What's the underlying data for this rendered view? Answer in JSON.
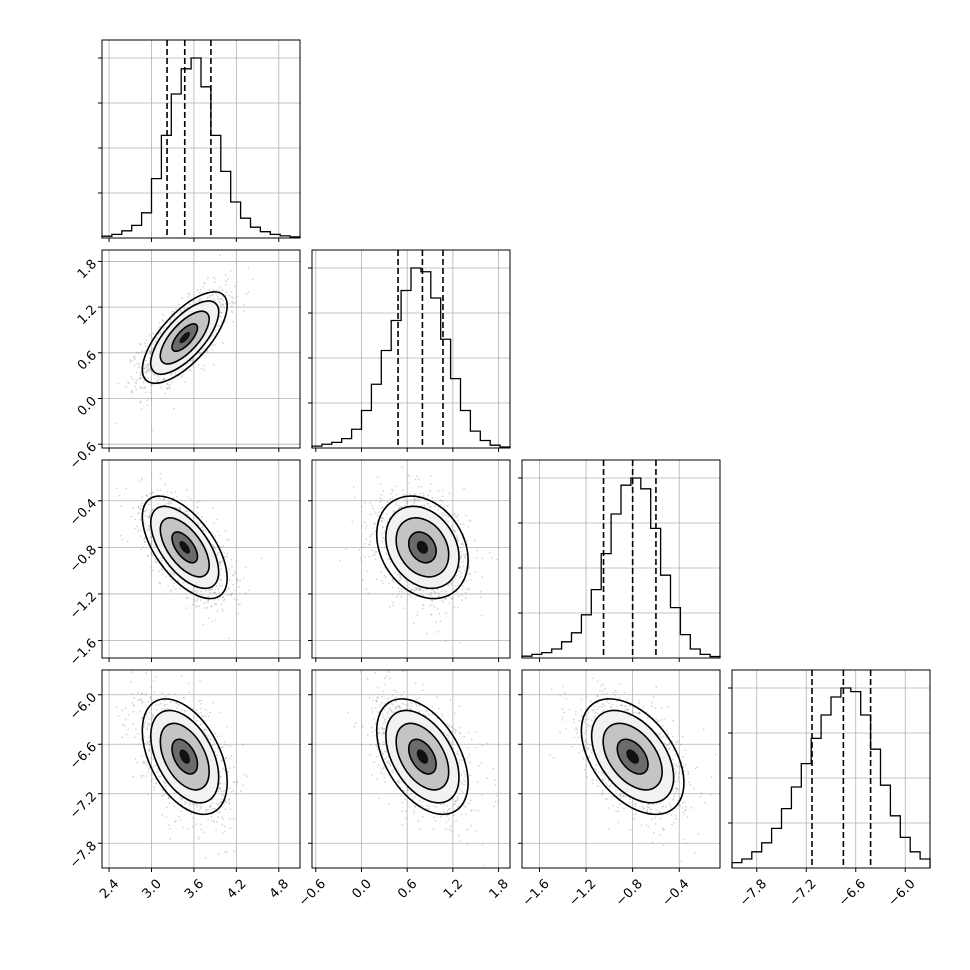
{
  "chart_data": {
    "type": "corner",
    "description_level": "posterior",
    "parameters": [
      {
        "name": "",
        "quantiles": [
          3.22,
          3.47,
          3.84
        ],
        "range": [
          2.3,
          5.1
        ],
        "ticks": [
          "2.4",
          "3.0",
          "3.6",
          "4.2",
          "4.8"
        ],
        "tick_values": [
          2.4,
          3.0,
          3.6,
          4.2,
          4.8
        ],
        "hist": [
          0.01,
          0.02,
          0.04,
          0.07,
          0.14,
          0.33,
          0.57,
          0.8,
          0.94,
          1.0,
          0.84,
          0.57,
          0.37,
          0.2,
          0.11,
          0.06,
          0.035,
          0.02,
          0.012,
          0.006
        ]
      },
      {
        "name": "",
        "quantiles": [
          0.48,
          0.8,
          1.07
        ],
        "range": [
          -0.65,
          1.95
        ],
        "ticks": [
          "-0.6",
          "0.0",
          "0.6",
          "1.2",
          "1.8"
        ],
        "tick_values": [
          -0.6,
          0.0,
          0.6,
          1.2,
          1.8
        ],
        "hist": [
          0.01,
          0.02,
          0.03,
          0.05,
          0.1,
          0.2,
          0.34,
          0.52,
          0.68,
          0.84,
          0.96,
          0.94,
          0.8,
          0.58,
          0.37,
          0.2,
          0.09,
          0.04,
          0.015,
          0.005
        ]
      },
      {
        "name": "",
        "quantiles": [
          -1.05,
          -0.8,
          -0.6
        ],
        "range": [
          -1.75,
          -0.05
        ],
        "ticks": [
          "-1.6",
          "-1.2",
          "-0.8",
          "-0.4"
        ],
        "tick_values": [
          -1.6,
          -1.2,
          -0.8,
          -0.4
        ],
        "hist": [
          0.01,
          0.02,
          0.03,
          0.05,
          0.09,
          0.14,
          0.24,
          0.38,
          0.58,
          0.8,
          0.96,
          1.0,
          0.94,
          0.72,
          0.46,
          0.28,
          0.13,
          0.05,
          0.02,
          0.008
        ]
      },
      {
        "name": "",
        "quantiles": [
          -7.13,
          -6.75,
          -6.42
        ],
        "range": [
          -8.1,
          -5.7
        ],
        "ticks": [
          "-7.8",
          "-7.2",
          "-6.6",
          "-6.0"
        ],
        "tick_values": [
          -7.8,
          -7.2,
          -6.6,
          -6.0
        ],
        "hist": [
          0.03,
          0.05,
          0.09,
          0.14,
          0.22,
          0.33,
          0.45,
          0.58,
          0.72,
          0.85,
          0.95,
          1.0,
          0.98,
          0.85,
          0.66,
          0.46,
          0.29,
          0.17,
          0.09,
          0.05
        ]
      }
    ],
    "correlations": [
      [
        1,
        0.7,
        -0.6,
        -0.45
      ],
      [
        0.7,
        1,
        -0.25,
        -0.45
      ],
      [
        -0.6,
        -0.25,
        1,
        -0.45
      ],
      [
        -0.45,
        -0.45,
        -0.45,
        1
      ]
    ],
    "sigmas": [
      0.3,
      0.3,
      0.22,
      0.35
    ],
    "grid": true,
    "contours": true,
    "scatter": true
  }
}
